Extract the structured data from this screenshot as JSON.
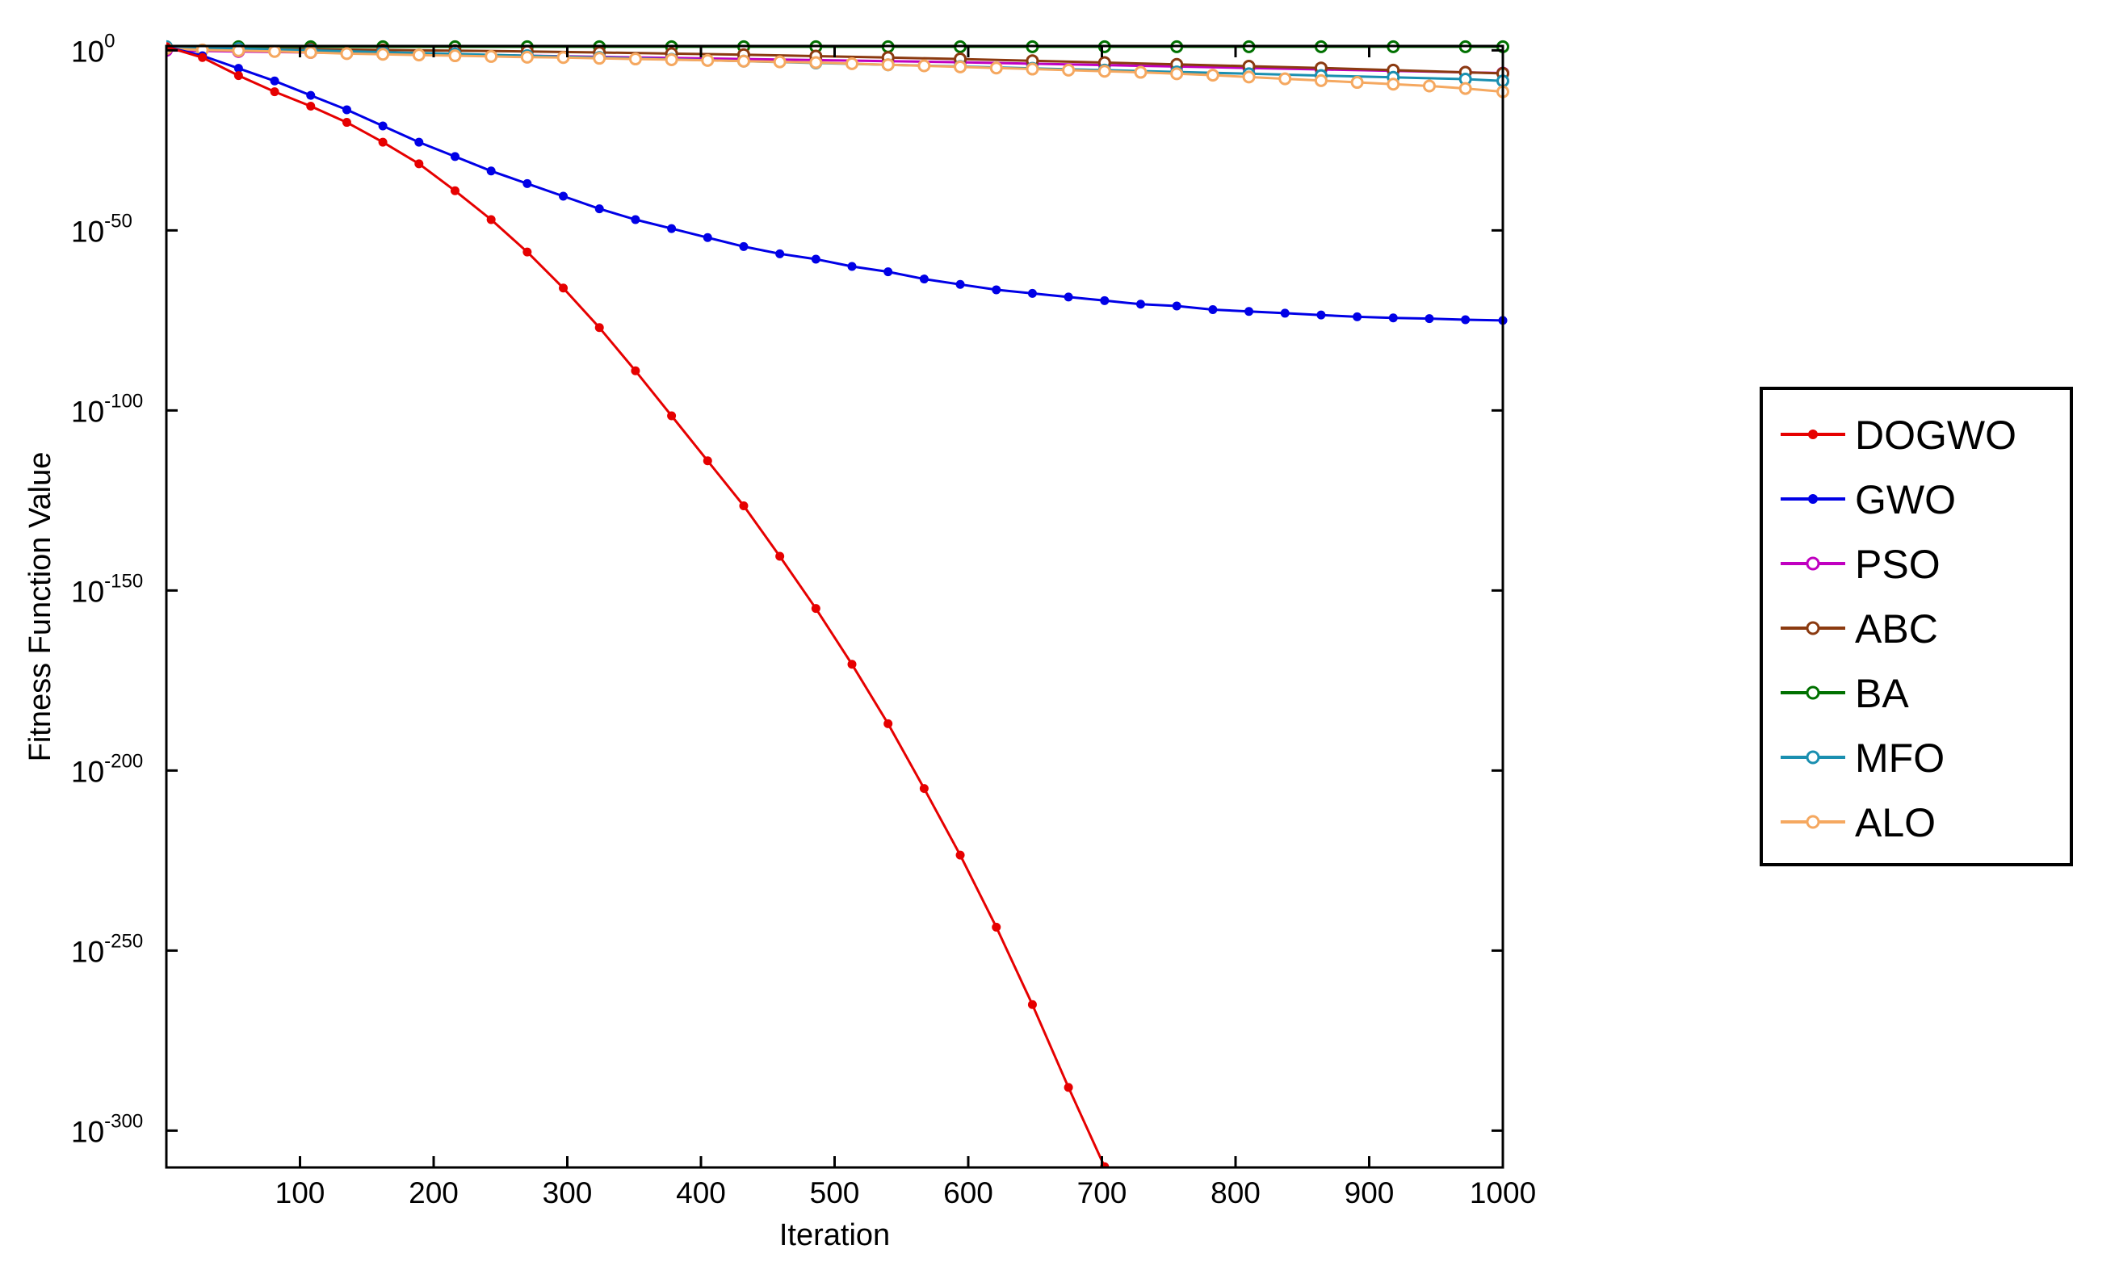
{
  "chart_data": {
    "type": "line",
    "title": "",
    "xlabel": "Iteration",
    "ylabel": "Fitness Function Value",
    "xlim": [
      0,
      1000
    ],
    "ylim_log10": [
      -305,
      0
    ],
    "y_scale": "log",
    "x_ticks": [
      "100",
      "200",
      "300",
      "400",
      "500",
      "600",
      "700",
      "800",
      "900",
      "1000"
    ],
    "y_ticks": [
      {
        "base": "10",
        "exp": "0",
        "log10": 0
      },
      {
        "base": "10",
        "exp": "-50",
        "log10": -50
      },
      {
        "base": "10",
        "exp": "-100",
        "log10": -100
      },
      {
        "base": "10",
        "exp": "-150",
        "log10": -150
      },
      {
        "base": "10",
        "exp": "-200",
        "log10": -200
      },
      {
        "base": "10",
        "exp": "-250",
        "log10": -250
      },
      {
        "base": "10",
        "exp": "-300",
        "log10": -300
      }
    ],
    "grid": false,
    "legend_position": "right",
    "series": [
      {
        "name": "DOGWO",
        "color": "#e60000",
        "marker": "dot",
        "x": [
          0,
          27,
          54,
          81,
          108,
          135,
          162,
          189,
          216,
          243,
          270,
          297,
          324,
          351,
          378,
          405,
          432,
          459,
          486,
          513,
          540,
          567,
          594,
          621,
          648,
          675,
          702
        ],
        "log10_y": [
          1,
          -2,
          -7,
          -11.5,
          -15.5,
          -20,
          -25.5,
          -31.5,
          -39,
          -47,
          -56,
          -66,
          -77,
          -89,
          -101.5,
          -114,
          -126.5,
          -140.5,
          -155,
          -170.5,
          -187,
          -205,
          -223.5,
          -243.5,
          -265,
          -288,
          -310
        ]
      },
      {
        "name": "GWO",
        "color": "#0000e6",
        "marker": "dot",
        "x": [
          0,
          27,
          54,
          81,
          108,
          135,
          162,
          189,
          216,
          243,
          270,
          297,
          324,
          351,
          378,
          405,
          432,
          459,
          486,
          513,
          540,
          567,
          594,
          621,
          648,
          675,
          702,
          729,
          756,
          783,
          810,
          837,
          864,
          891,
          918,
          945,
          972,
          1000
        ],
        "log10_y": [
          1,
          -1.5,
          -5,
          -8.5,
          -12.5,
          -16.5,
          -21,
          -25.5,
          -29.5,
          -33.5,
          -37,
          -40.5,
          -44,
          -47,
          -49.5,
          -52,
          -54.5,
          -56.5,
          -58,
          -60,
          -61.5,
          -63.5,
          -65,
          -66.5,
          -67.5,
          -68.5,
          -69.5,
          -70.5,
          -71,
          -72,
          -72.5,
          -73,
          -73.5,
          -74,
          -74.3,
          -74.5,
          -74.8,
          -75
        ]
      },
      {
        "name": "PSO",
        "color": "#c000c0",
        "marker": "circle",
        "x": [
          0,
          54,
          108,
          162,
          216,
          270,
          324,
          378,
          432,
          486,
          540,
          594,
          648,
          702,
          756,
          810,
          864,
          918,
          972,
          1000
        ],
        "log10_y": [
          0,
          -0.3,
          -0.6,
          -0.9,
          -1.2,
          -1.5,
          -1.8,
          -2.1,
          -2.4,
          -2.7,
          -3,
          -3.3,
          -3.7,
          -4.1,
          -4.5,
          -4.9,
          -5.3,
          -5.7,
          -6.1,
          -6.3
        ]
      },
      {
        "name": "ABC",
        "color": "#8b3a10",
        "marker": "circle",
        "x": [
          0,
          54,
          108,
          162,
          216,
          270,
          324,
          378,
          432,
          486,
          540,
          594,
          648,
          702,
          756,
          810,
          864,
          918,
          972,
          1000
        ],
        "log10_y": [
          0.5,
          0.4,
          0.3,
          0.1,
          -0.1,
          -0.3,
          -0.6,
          -0.9,
          -1.2,
          -1.6,
          -2,
          -2.4,
          -2.9,
          -3.4,
          -3.9,
          -4.4,
          -4.9,
          -5.5,
          -6.1,
          -6.4
        ]
      },
      {
        "name": "BA",
        "color": "#007000",
        "marker": "circle",
        "x": [
          0,
          54,
          108,
          162,
          216,
          270,
          324,
          378,
          432,
          486,
          540,
          594,
          648,
          702,
          756,
          810,
          864,
          918,
          972,
          1000
        ],
        "log10_y": [
          1,
          1,
          1,
          1,
          1,
          1,
          1,
          1,
          1,
          1,
          1,
          1,
          1,
          1,
          1,
          1,
          1,
          1,
          1,
          1
        ]
      },
      {
        "name": "MFO",
        "color": "#1a8fb0",
        "marker": "circle",
        "x": [
          0,
          54,
          108,
          162,
          216,
          270,
          324,
          378,
          432,
          486,
          540,
          594,
          648,
          702,
          756,
          810,
          864,
          918,
          972,
          1000
        ],
        "log10_y": [
          1,
          0.5,
          0,
          -0.5,
          -1,
          -1.5,
          -2,
          -2.5,
          -3,
          -3.5,
          -4,
          -4.5,
          -5,
          -5.5,
          -6,
          -6.5,
          -7,
          -7.5,
          -8,
          -8.5
        ]
      },
      {
        "name": "ALO",
        "color": "#f5a860",
        "marker": "circle",
        "x": [
          0,
          27,
          54,
          81,
          108,
          135,
          162,
          189,
          216,
          243,
          270,
          297,
          324,
          351,
          378,
          405,
          432,
          459,
          486,
          513,
          540,
          567,
          594,
          621,
          648,
          675,
          702,
          729,
          756,
          783,
          810,
          837,
          864,
          891,
          918,
          945,
          972,
          1000
        ],
        "log10_y": [
          0.5,
          0.1,
          -0.1,
          -0.3,
          -0.6,
          -0.9,
          -1.1,
          -1.3,
          -1.5,
          -1.7,
          -1.9,
          -2,
          -2.2,
          -2.4,
          -2.6,
          -2.8,
          -3,
          -3.2,
          -3.4,
          -3.7,
          -4,
          -4.3,
          -4.6,
          -4.9,
          -5.2,
          -5.5,
          -5.8,
          -6.1,
          -6.5,
          -6.9,
          -7.4,
          -7.9,
          -8.4,
          -8.9,
          -9.4,
          -9.9,
          -10.6,
          -11.5
        ]
      }
    ]
  }
}
